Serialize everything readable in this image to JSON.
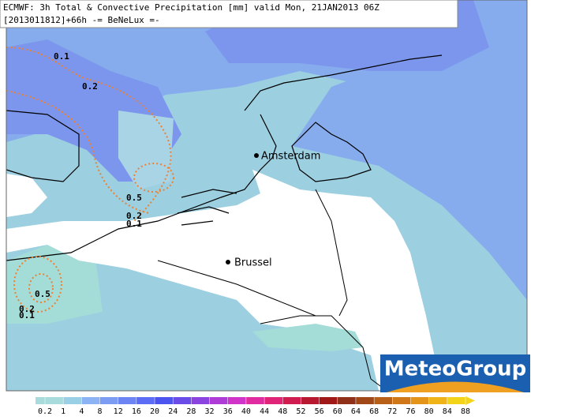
{
  "header": {
    "line1": "ECMWF: 3h Total & Convective Precipitation [mm] valid Mon, 21JAN2013 06Z",
    "line2": "[2013011812]+66h  -= BeNeLux =-"
  },
  "cities": [
    {
      "name": "Amsterdam"
    },
    {
      "name": "Brussel"
    }
  ],
  "contour_labels": [
    0.1,
    0.2,
    0.5,
    0.2,
    0.1,
    0.5,
    0.2,
    0.1
  ],
  "logo": "MeteoGroup",
  "legend": {
    "ticks": [
      0.2,
      1,
      4,
      8,
      12,
      16,
      20,
      24,
      28,
      32,
      36,
      40,
      44,
      48,
      52,
      56,
      60,
      64,
      68,
      72,
      76,
      80,
      84,
      88
    ],
    "colors": [
      "#a8dcdc",
      "#9ad0e6",
      "#8cb4f4",
      "#7c9cf4",
      "#6c84f4",
      "#5c6cf4",
      "#4c54f0",
      "#6a4ce8",
      "#8c44e0",
      "#b03cd8",
      "#d034c8",
      "#e02ca0",
      "#e02478",
      "#d01c50",
      "#b81830",
      "#a01818",
      "#903018",
      "#a04818",
      "#b86018",
      "#d07818",
      "#e49418",
      "#f0b418",
      "#f4d418"
    ]
  }
}
